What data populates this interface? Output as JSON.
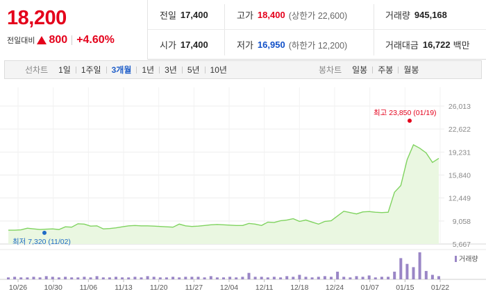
{
  "header": {
    "price": "18,200",
    "change_label": "전일대비",
    "change_amount": "800",
    "change_rate": "+4.60%",
    "prev_close": {
      "label": "전일",
      "value": "17,400"
    },
    "open": {
      "label": "시가",
      "value": "17,400"
    },
    "high": {
      "label": "고가",
      "value": "18,400",
      "limit": "(상한가 22,600)"
    },
    "low": {
      "label": "저가",
      "value": "16,950",
      "limit": "(하한가 12,200)"
    },
    "volume": {
      "label": "거래량",
      "value": "945,168"
    },
    "amount": {
      "label": "거래대금",
      "value": "16,722",
      "unit": "백만"
    },
    "colors": {
      "up": "#e4001b",
      "down": "#1150c8"
    }
  },
  "toolbar": {
    "line_label": "선차트",
    "line_periods": [
      "1일",
      "1주일",
      "3개월",
      "1년",
      "3년",
      "5년",
      "10년"
    ],
    "line_active": "3개월",
    "candle_label": "봉차트",
    "candle_periods": [
      "일봉",
      "주봉",
      "월봉"
    ]
  },
  "chart_data": {
    "type": "area",
    "x_tick_labels": [
      "10/26",
      "10/30",
      "11/06",
      "11/13",
      "11/20",
      "11/27",
      "12/04",
      "12/11",
      "12/18",
      "12/24",
      "01/07",
      "01/15",
      "01/22"
    ],
    "y_tick_labels": [
      "26,013",
      "22,622",
      "19,231",
      "15,840",
      "12,449",
      "9,058",
      "5,667"
    ],
    "ylim": [
      5667,
      26013
    ],
    "price": [
      7700,
      7700,
      7750,
      8000,
      7900,
      7800,
      7850,
      7900,
      7800,
      8200,
      8150,
      8650,
      8600,
      8300,
      8350,
      7900,
      7950,
      8050,
      8200,
      8350,
      8400,
      8350,
      8350,
      8300,
      8250,
      8200,
      8150,
      8600,
      8350,
      8250,
      8300,
      8400,
      8500,
      8550,
      8500,
      8450,
      8400,
      8400,
      8700,
      8600,
      8400,
      8900,
      8850,
      9100,
      9200,
      9400,
      9000,
      9200,
      8900,
      8600,
      9000,
      9100,
      9800,
      10500,
      10300,
      10100,
      10400,
      10450,
      10350,
      10300,
      10350,
      13300,
      14300,
      18100,
      20300,
      19800,
      19100,
      17700,
      18300
    ],
    "volume_label": "거래량",
    "volume": [
      3,
      4,
      3,
      3,
      4,
      3,
      5,
      4,
      3,
      4,
      3,
      3,
      4,
      3,
      5,
      3,
      3,
      4,
      3,
      3,
      4,
      3,
      5,
      4,
      3,
      3,
      4,
      3,
      4,
      4,
      4,
      3,
      5,
      3,
      3,
      4,
      3,
      4,
      10,
      4,
      4,
      3,
      4,
      3,
      5,
      4,
      7,
      4,
      3,
      4,
      5,
      4,
      12,
      4,
      3,
      5,
      4,
      6,
      3,
      4,
      4,
      12,
      33,
      24,
      19,
      42,
      13,
      7,
      5
    ],
    "max_label": "최고 23,850 (01/19)",
    "max_value": 23850,
    "min_label": "최저 7,320 (11/02)",
    "min_value": 7320,
    "colors": {
      "line": "#7fd35f",
      "fill": "#eaf7e1",
      "volume": "#9a86c6",
      "max": "#e4001b",
      "min": "#1f6bc6"
    }
  }
}
